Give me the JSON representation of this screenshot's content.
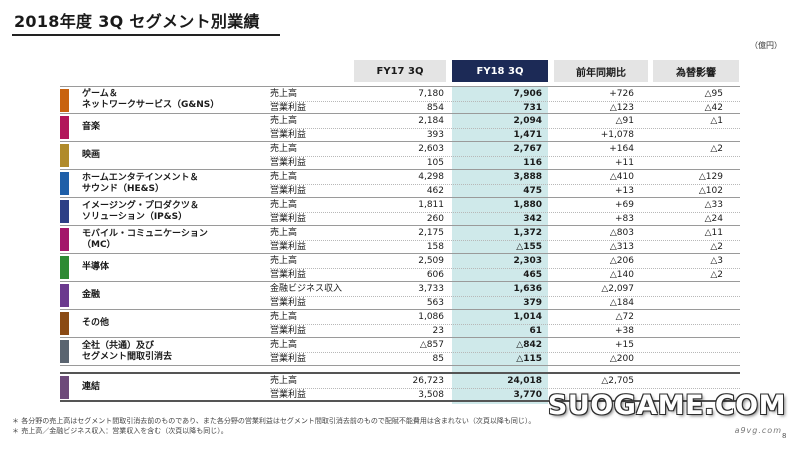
{
  "title": "2018年度 3Q セグメント別業績",
  "unit": "（億円）",
  "headers": {
    "fy17": "FY17 3Q",
    "fy18": "FY18 3Q",
    "yoy": "前年同期比",
    "fx": "為替影響"
  },
  "segments": [
    {
      "name_lines": [
        "ゲーム＆",
        "ネットワークサービス（G&NS）"
      ],
      "color": "#c8620f",
      "rows": [
        {
          "metric": "売上高",
          "fy17": "7,180",
          "fy18": "7,906",
          "yoy": "+726",
          "fx": "△95"
        },
        {
          "metric": "営業利益",
          "fy17": "854",
          "fy18": "731",
          "yoy": "△123",
          "fx": "△42"
        }
      ]
    },
    {
      "name_lines": [
        "音楽"
      ],
      "color": "#b2165a",
      "rows": [
        {
          "metric": "売上高",
          "fy17": "2,184",
          "fy18": "2,094",
          "yoy": "△91",
          "fx": "△1"
        },
        {
          "metric": "営業利益",
          "fy17": "393",
          "fy18": "1,471",
          "yoy": "+1,078",
          "fx": ""
        }
      ]
    },
    {
      "name_lines": [
        "映画"
      ],
      "color": "#b08a2a",
      "rows": [
        {
          "metric": "売上高",
          "fy17": "2,603",
          "fy18": "2,767",
          "yoy": "+164",
          "fx": "△2"
        },
        {
          "metric": "営業利益",
          "fy17": "105",
          "fy18": "116",
          "yoy": "+11",
          "fx": ""
        }
      ]
    },
    {
      "name_lines": [
        "ホームエンタテインメント＆",
        "サウンド（HE&S）"
      ],
      "color": "#1f5fa8",
      "rows": [
        {
          "metric": "売上高",
          "fy17": "4,298",
          "fy18": "3,888",
          "yoy": "△410",
          "fx": "△129"
        },
        {
          "metric": "営業利益",
          "fy17": "462",
          "fy18": "475",
          "yoy": "+13",
          "fx": "△102"
        }
      ]
    },
    {
      "name_lines": [
        "イメージング・プロダクツ＆",
        "ソリューション（IP&S）"
      ],
      "color": "#2d3f86",
      "rows": [
        {
          "metric": "売上高",
          "fy17": "1,811",
          "fy18": "1,880",
          "yoy": "+69",
          "fx": "△33"
        },
        {
          "metric": "営業利益",
          "fy17": "260",
          "fy18": "342",
          "yoy": "+83",
          "fx": "△24"
        }
      ]
    },
    {
      "name_lines": [
        "モバイル・コミュニケーション",
        "（MC）"
      ],
      "color": "#a3166a",
      "rows": [
        {
          "metric": "売上高",
          "fy17": "2,175",
          "fy18": "1,372",
          "yoy": "△803",
          "fx": "△11"
        },
        {
          "metric": "営業利益",
          "fy17": "158",
          "fy18": "△155",
          "yoy": "△313",
          "fx": "△2"
        }
      ]
    },
    {
      "name_lines": [
        "半導体"
      ],
      "color": "#2e8a34",
      "rows": [
        {
          "metric": "売上高",
          "fy17": "2,509",
          "fy18": "2,303",
          "yoy": "△206",
          "fx": "△3"
        },
        {
          "metric": "営業利益",
          "fy17": "606",
          "fy18": "465",
          "yoy": "△140",
          "fx": "△2"
        }
      ]
    },
    {
      "name_lines": [
        "金融"
      ],
      "color": "#6b3a8e",
      "rows": [
        {
          "metric": "金融ビジネス収入",
          "fy17": "3,733",
          "fy18": "1,636",
          "yoy": "△2,097",
          "fx": ""
        },
        {
          "metric": "営業利益",
          "fy17": "563",
          "fy18": "379",
          "yoy": "△184",
          "fx": ""
        }
      ]
    },
    {
      "name_lines": [
        "その他"
      ],
      "color": "#8a4a14",
      "rows": [
        {
          "metric": "売上高",
          "fy17": "1,086",
          "fy18": "1,014",
          "yoy": "△72",
          "fx": ""
        },
        {
          "metric": "営業利益",
          "fy17": "23",
          "fy18": "61",
          "yoy": "+38",
          "fx": ""
        }
      ]
    },
    {
      "name_lines": [
        "全社（共通）及び",
        "セグメント間取引消去"
      ],
      "color": "#5a6470",
      "rows": [
        {
          "metric": "売上高",
          "fy17": "△857",
          "fy18": "△842",
          "yoy": "+15",
          "fx": ""
        },
        {
          "metric": "営業利益",
          "fy17": "85",
          "fy18": "△115",
          "yoy": "△200",
          "fx": ""
        }
      ]
    }
  ],
  "total": {
    "name_lines": [
      "連結"
    ],
    "color": "#6d4a7a",
    "rows": [
      {
        "metric": "売上高",
        "fy17": "26,723",
        "fy18": "24,018",
        "yoy": "△2,705",
        "fx": ""
      },
      {
        "metric": "営業利益",
        "fy17": "3,508",
        "fy18": "3,770",
        "yoy": "",
        "fx": ""
      }
    ]
  },
  "footnotes": [
    "＊ 各分野の売上高はセグメント間取引消去前のものであり、また各分野の営業利益はセグメント間取引消去前のもので配賦不能費用は含まれない（次頁以降も同じ）。",
    "＊ 売上高／金融ビジネス収入：営業収入を含む（次頁以降も同じ）。"
  ],
  "watermark": {
    "main": "SUOGAME.COM",
    "sub": "a9vg.com"
  },
  "page_number": "8"
}
